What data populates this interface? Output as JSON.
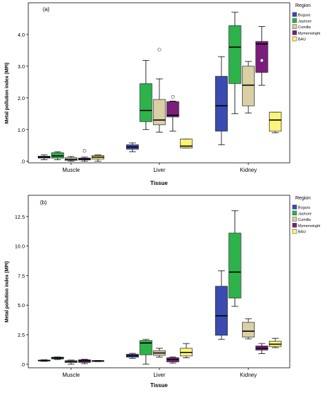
{
  "chart_data": [
    {
      "type": "boxplot",
      "panel_label": "(a)",
      "xlabel": "Tissue",
      "ylabel": "Metal pollution index (MPI)",
      "ylim": [
        -0.05,
        5.0
      ],
      "yticks": [
        0.0,
        1.0,
        2.0,
        3.0,
        4.0
      ],
      "ytick_labels": [
        ".0",
        "1.0",
        "2.0",
        "3.0",
        "4.0"
      ],
      "categories": [
        "Muscle",
        "Liver",
        "Kidney"
      ],
      "legend_title": "Region",
      "legend_position": "right",
      "series": [
        {
          "name": "Bogura",
          "color": "#3a4cb0",
          "boxes": [
            {
              "min": 0.05,
              "q1": 0.1,
              "median": 0.13,
              "q3": 0.16,
              "max": 0.2,
              "outliers": []
            },
            {
              "min": 0.3,
              "q1": 0.38,
              "median": 0.45,
              "q3": 0.52,
              "max": 0.58,
              "outliers": []
            },
            {
              "min": 0.52,
              "q1": 0.95,
              "median": 1.75,
              "q3": 2.68,
              "max": 3.3,
              "outliers": []
            }
          ]
        },
        {
          "name": "Jashore",
          "color": "#2db34a",
          "boxes": [
            {
              "min": 0.05,
              "q1": 0.1,
              "median": 0.17,
              "q3": 0.27,
              "max": 0.3,
              "outliers": []
            },
            {
              "min": 1.0,
              "q1": 1.25,
              "median": 1.6,
              "q3": 2.45,
              "max": 3.18,
              "outliers": []
            },
            {
              "min": 1.5,
              "q1": 2.45,
              "median": 3.6,
              "q3": 4.28,
              "max": 4.7,
              "outliers": []
            }
          ]
        },
        {
          "name": "Cumilla",
          "color": "#d9d1a5",
          "boxes": [
            {
              "min": 0.0,
              "q1": 0.03,
              "median": 0.06,
              "q3": 0.11,
              "max": 0.15,
              "outliers": []
            },
            {
              "min": 0.92,
              "q1": 1.15,
              "median": 1.3,
              "q3": 1.95,
              "max": 2.6,
              "outliers": [
                3.52
              ]
            },
            {
              "min": 1.52,
              "q1": 1.75,
              "median": 2.4,
              "q3": 3.0,
              "max": 3.15,
              "outliers": []
            }
          ]
        },
        {
          "name": "Mymensinghi",
          "color": "#7b1e7b",
          "boxes": [
            {
              "min": 0.0,
              "q1": 0.04,
              "median": 0.07,
              "q3": 0.1,
              "max": 0.13,
              "outliers": [
                0.33
              ]
            },
            {
              "min": 0.95,
              "q1": 1.4,
              "median": 1.45,
              "q3": 1.88,
              "max": 1.9,
              "outliers": [
                2.03
              ]
            },
            {
              "min": 2.4,
              "q1": 2.8,
              "median": 3.7,
              "q3": 3.78,
              "max": 4.25,
              "outliers": [
                3.18
              ]
            }
          ]
        },
        {
          "name": "BAU",
          "color": "#fbf47a",
          "boxes": [
            {
              "min": 0.0,
              "q1": 0.07,
              "median": 0.13,
              "q3": 0.18,
              "max": 0.2,
              "outliers": []
            },
            {
              "min": 0.42,
              "q1": 0.42,
              "median": 0.48,
              "q3": 0.7,
              "max": 0.7,
              "outliers": []
            },
            {
              "min": 0.9,
              "q1": 0.95,
              "median": 1.3,
              "q3": 1.55,
              "max": 1.55,
              "outliers": []
            }
          ]
        }
      ]
    },
    {
      "type": "boxplot",
      "panel_label": "(b)",
      "xlabel": "Tissue",
      "ylabel": "Metal pollution index (MPI)",
      "ylim": [
        -0.3,
        14.3
      ],
      "yticks": [
        0.0,
        2.5,
        5.0,
        7.5,
        10.0,
        12.5
      ],
      "ytick_labels": [
        ".0",
        "2.5",
        "5.0",
        "7.5",
        "10.0",
        "12.5"
      ],
      "categories": [
        "Muscle",
        "Liver",
        "Kidney"
      ],
      "legend_title": "Region",
      "legend_position": "right",
      "series": [
        {
          "name": "Bogura",
          "color": "#3a4cb0",
          "boxes": [
            {
              "min": 0.25,
              "q1": 0.28,
              "median": 0.3,
              "q3": 0.35,
              "max": 0.38,
              "outliers": []
            },
            {
              "min": 0.5,
              "q1": 0.6,
              "median": 0.72,
              "q3": 0.85,
              "max": 0.92,
              "outliers": []
            },
            {
              "min": 2.1,
              "q1": 2.45,
              "median": 4.1,
              "q3": 6.6,
              "max": 7.9,
              "outliers": []
            }
          ]
        },
        {
          "name": "Jashore",
          "color": "#2db34a",
          "boxes": [
            {
              "min": 0.4,
              "q1": 0.45,
              "median": 0.52,
              "q3": 0.6,
              "max": 0.62,
              "outliers": []
            },
            {
              "min": 0.0,
              "q1": 0.8,
              "median": 1.8,
              "q3": 2.0,
              "max": 2.1,
              "outliers": []
            },
            {
              "min": 4.9,
              "q1": 5.6,
              "median": 7.8,
              "q3": 11.1,
              "max": 13.0,
              "outliers": []
            }
          ]
        },
        {
          "name": "Cumilla",
          "color": "#d9d1a5",
          "boxes": [
            {
              "min": 0.0,
              "q1": 0.15,
              "median": 0.22,
              "q3": 0.3,
              "max": 0.35,
              "outliers": []
            },
            {
              "min": 0.6,
              "q1": 0.75,
              "median": 0.95,
              "q3": 1.15,
              "max": 1.35,
              "outliers": []
            },
            {
              "min": 2.15,
              "q1": 2.3,
              "median": 2.8,
              "q3": 3.55,
              "max": 3.85,
              "outliers": []
            }
          ]
        },
        {
          "name": "Mymensinghi",
          "color": "#7b1e7b",
          "boxes": [
            {
              "min": 0.05,
              "q1": 0.15,
              "median": 0.28,
              "q3": 0.38,
              "max": 0.42,
              "outliers": []
            },
            {
              "min": 0.1,
              "q1": 0.2,
              "median": 0.4,
              "q3": 0.55,
              "max": 0.62,
              "outliers": []
            },
            {
              "min": 0.9,
              "q1": 1.2,
              "median": 1.35,
              "q3": 1.55,
              "max": 1.75,
              "outliers": []
            }
          ]
        },
        {
          "name": "BAU",
          "color": "#fbf47a",
          "boxes": [
            {
              "min": 0.22,
              "q1": 0.25,
              "median": 0.28,
              "q3": 0.3,
              "max": 0.32,
              "outliers": []
            },
            {
              "min": 0.55,
              "q1": 0.7,
              "median": 1.0,
              "q3": 1.35,
              "max": 1.75,
              "outliers": []
            },
            {
              "min": 1.4,
              "q1": 1.5,
              "median": 1.7,
              "q3": 1.95,
              "max": 2.2,
              "outliers": []
            }
          ]
        }
      ]
    }
  ]
}
